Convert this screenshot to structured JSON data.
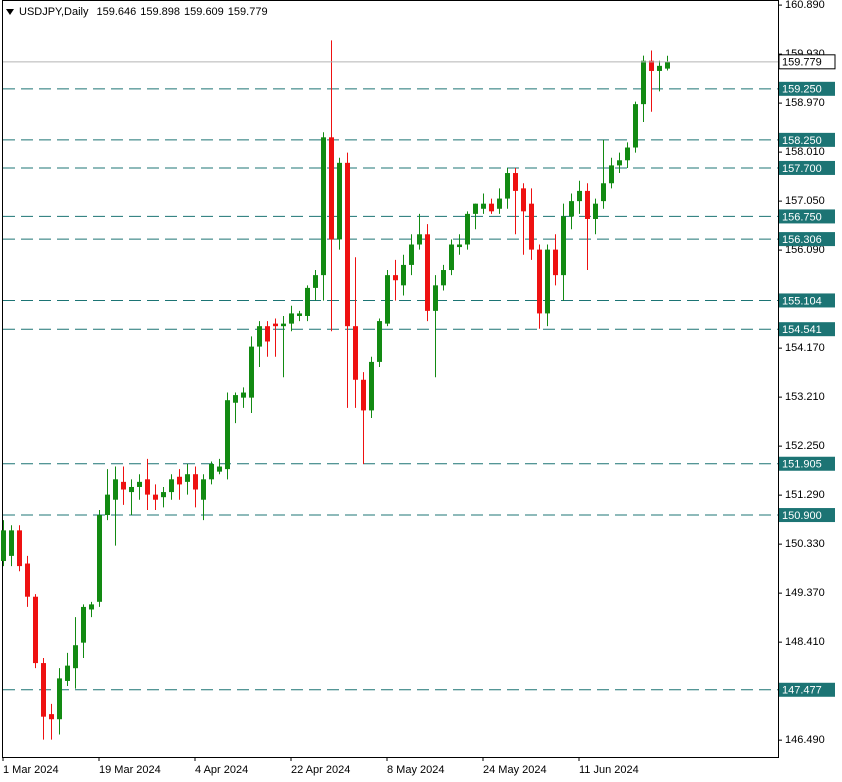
{
  "chart_data": {
    "type": "candlestick",
    "title": "USDJPY,Daily",
    "up_color": "#128a12",
    "down_color": "#ee1111",
    "level_color": "#1c7474",
    "categories": [
      "1 Mar 2024",
      null,
      null,
      null,
      null,
      null,
      null,
      null,
      null,
      null,
      null,
      null,
      "19 Mar 2024",
      null,
      null,
      null,
      null,
      null,
      null,
      null,
      null,
      null,
      null,
      null,
      "4 Apr 2024",
      null,
      null,
      null,
      null,
      null,
      null,
      null,
      null,
      null,
      null,
      null,
      "22 Apr 2024",
      null,
      null,
      null,
      null,
      null,
      null,
      null,
      null,
      null,
      null,
      null,
      "8 May 2024",
      null,
      null,
      null,
      null,
      null,
      null,
      null,
      null,
      null,
      null,
      null,
      "24 May 2024",
      null,
      null,
      null,
      null,
      null,
      null,
      null,
      null,
      null,
      null,
      null,
      "11 Jun 2024",
      null,
      null,
      null,
      null,
      null,
      null,
      null,
      null,
      null,
      null,
      null
    ],
    "open": [
      150.0,
      150.1,
      150.6,
      149.95,
      149.3,
      148.0,
      147.0,
      146.9,
      147.65,
      147.9,
      148.4,
      149.05,
      149.2,
      150.9,
      151.2,
      151.55,
      151.35,
      151.45,
      151.6,
      151.3,
      151.25,
      151.35,
      151.65,
      151.55,
      151.7,
      151.2,
      151.6,
      151.75,
      151.8,
      153.1,
      153.2,
      153.2,
      154.2,
      154.6,
      154.65,
      154.6,
      154.65,
      154.8,
      154.8,
      155.35,
      155.6,
      158.3,
      156.3,
      157.8,
      154.6,
      153.55,
      152.95,
      153.9,
      154.65,
      155.6,
      155.4,
      155.8,
      156.2,
      156.4,
      154.9,
      155.4,
      155.7,
      156.15,
      156.2,
      156.8,
      156.9,
      157.0,
      156.9,
      157.1,
      157.6,
      157.3,
      157.0,
      156.1,
      154.85,
      156.1,
      155.6,
      156.75,
      157.05,
      157.25,
      156.7,
      157.05,
      157.4,
      157.75,
      157.85,
      158.1,
      158.95,
      159.8,
      159.6,
      159.646
    ],
    "high": [
      150.8,
      150.7,
      150.7,
      150.1,
      149.35,
      148.1,
      147.2,
      147.9,
      148.2,
      148.9,
      149.15,
      149.2,
      151.0,
      151.8,
      151.85,
      151.85,
      151.6,
      151.7,
      152.0,
      151.5,
      151.45,
      151.7,
      151.8,
      151.9,
      151.85,
      151.7,
      151.95,
      152.0,
      153.3,
      153.3,
      153.4,
      154.4,
      154.7,
      154.7,
      154.75,
      154.8,
      155.0,
      154.9,
      155.4,
      155.7,
      158.4,
      160.2,
      157.9,
      158.0,
      155.95,
      153.7,
      154.0,
      154.75,
      155.7,
      155.9,
      156.0,
      156.4,
      156.8,
      156.6,
      155.6,
      155.8,
      156.3,
      156.4,
      156.85,
      157.0,
      157.2,
      157.1,
      157.3,
      157.7,
      157.7,
      157.4,
      157.3,
      156.2,
      156.2,
      156.4,
      157.0,
      157.2,
      157.45,
      157.4,
      157.1,
      158.25,
      157.9,
      158.0,
      158.2,
      159.0,
      159.9,
      160.0,
      159.8,
      159.898
    ],
    "low": [
      149.9,
      149.9,
      149.8,
      149.1,
      147.9,
      146.5,
      146.5,
      146.6,
      147.55,
      147.5,
      148.1,
      148.9,
      149.1,
      150.8,
      150.3,
      151.1,
      150.9,
      151.2,
      151.0,
      151.0,
      151.05,
      151.2,
      151.2,
      151.3,
      151.05,
      150.8,
      151.5,
      151.7,
      151.6,
      152.7,
      153.0,
      152.9,
      153.8,
      154.0,
      154.0,
      153.6,
      154.5,
      154.7,
      154.7,
      155.1,
      155.1,
      154.5,
      156.1,
      153.0,
      153.0,
      151.9,
      152.8,
      153.8,
      154.6,
      155.1,
      155.2,
      155.6,
      156.1,
      154.7,
      153.6,
      155.3,
      155.6,
      156.0,
      156.1,
      156.5,
      156.8,
      156.8,
      156.8,
      156.9,
      156.4,
      156.0,
      155.9,
      154.55,
      154.6,
      155.4,
      155.1,
      156.5,
      156.8,
      155.7,
      156.4,
      156.9,
      157.3,
      157.6,
      157.7,
      158.0,
      158.6,
      158.8,
      159.2,
      159.609
    ],
    "close": [
      150.6,
      150.6,
      149.9,
      149.3,
      148.0,
      146.95,
      146.9,
      147.7,
      147.95,
      148.35,
      149.1,
      149.15,
      150.9,
      151.3,
      151.6,
      151.4,
      151.45,
      151.55,
      151.3,
      151.2,
      151.35,
      151.6,
      151.5,
      151.7,
      151.4,
      151.6,
      151.9,
      151.85,
      153.15,
      153.25,
      153.3,
      154.2,
      154.6,
      154.3,
      154.6,
      154.65,
      154.85,
      154.85,
      155.35,
      155.6,
      158.3,
      156.3,
      157.8,
      154.6,
      153.55,
      152.95,
      153.9,
      154.7,
      155.6,
      155.5,
      155.8,
      156.2,
      156.4,
      154.9,
      155.4,
      155.7,
      156.2,
      156.2,
      156.8,
      157.0,
      157.0,
      156.85,
      157.1,
      157.6,
      157.25,
      156.85,
      156.1,
      154.85,
      156.1,
      155.6,
      156.75,
      157.05,
      157.25,
      156.7,
      157.0,
      157.4,
      157.75,
      157.85,
      158.1,
      158.95,
      159.8,
      159.6,
      159.7,
      159.779
    ],
    "levels": [
      {
        "value": 159.25,
        "label": "159.250"
      },
      {
        "value": 158.25,
        "label": "158.250"
      },
      {
        "value": 157.7,
        "label": "157.700"
      },
      {
        "value": 156.75,
        "label": "156.750"
      },
      156.306,
      {
        "value": 155.104,
        "label": "155.104"
      },
      154.541,
      {
        "value": 151.905,
        "label": "151.905"
      },
      {
        "value": 150.9,
        "label": "150.900"
      },
      147.477
    ],
    "ylim": [
      146.16,
      160.99
    ],
    "yticks": [
      {
        "value": 160.89,
        "label": "160.890"
      },
      {
        "value": 159.93,
        "label": "159.930"
      },
      {
        "value": 158.97,
        "label": "158.970"
      },
      {
        "value": 158.01,
        "label": "158.010"
      },
      {
        "value": 157.05,
        "label": "157.050"
      },
      {
        "value": 156.09,
        "label": "156.090"
      },
      {
        "value": 154.17,
        "label": "154.170"
      },
      {
        "value": 153.21,
        "label": "153.210"
      },
      {
        "value": 152.25,
        "label": "152.250"
      },
      {
        "value": 151.29,
        "label": "151.290"
      },
      {
        "value": 150.33,
        "label": "150.330"
      },
      {
        "value": 149.37,
        "label": "149.370"
      },
      {
        "value": 148.41,
        "label": "148.410"
      },
      {
        "value": 146.49,
        "label": "146.490"
      }
    ]
  }
}
